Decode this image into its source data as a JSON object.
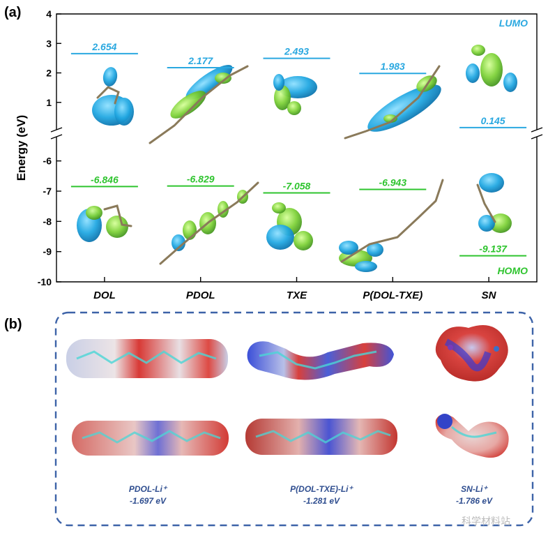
{
  "panel_a_label": "(a)",
  "panel_b_label": "(b)",
  "watermark": "科学材料站",
  "colors": {
    "lumo": "#2aa8e0",
    "homo": "#2ec42e",
    "esp_text": "#2e4d8f",
    "dash_box": "#3d63a8"
  },
  "chart_data": {
    "type": "scatter",
    "subtype": "energy-level diagram (broken y-axis)",
    "ylabel": "Energy (eV)",
    "categories": [
      "DOL",
      "PDOL",
      "TXE",
      "P(DOL-TXE)",
      "SN"
    ],
    "upper_ylim": [
      0,
      4
    ],
    "lower_ylim": [
      -10,
      -5.2
    ],
    "upper_yticks": [
      "1",
      "2",
      "3",
      "4"
    ],
    "lower_yticks": [
      "-6",
      "-7",
      "-8",
      "-9",
      "-10"
    ],
    "lumo_label": "LUMO",
    "homo_label": "HOMO",
    "series": [
      {
        "name": "LUMO",
        "values": [
          2.654,
          2.177,
          2.493,
          1.983,
          0.145
        ],
        "labels": [
          "2.654",
          "2.177",
          "2.493",
          "1.983",
          "0.145"
        ]
      },
      {
        "name": "HOMO",
        "values": [
          -6.846,
          -6.829,
          -7.058,
          -6.943,
          -9.137
        ],
        "labels": [
          "-6.846",
          "-6.829",
          "-7.058",
          "-6.943",
          "-9.137"
        ]
      }
    ]
  },
  "esp": {
    "items": [
      {
        "name": "PDOL-Li⁺",
        "value": "-1.697 eV"
      },
      {
        "name": "P(DOL-TXE)-Li⁺",
        "value": "-1.281 eV"
      },
      {
        "name": "SN-Li⁺",
        "value": "-1.786 eV"
      }
    ]
  }
}
